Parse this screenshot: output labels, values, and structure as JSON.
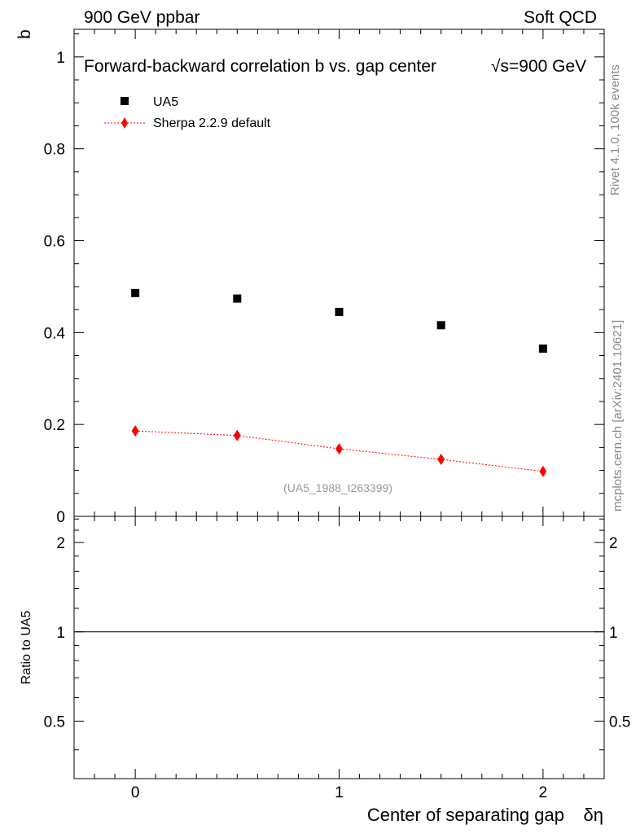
{
  "header": {
    "left": "900 GeV ppbar",
    "right": "Soft QCD"
  },
  "side_labels": {
    "rivet": "Rivet 4.1.0,  100k events",
    "mcplots": "mcplots.cern.ch [arXiv:2401.10621]"
  },
  "chart_data": {
    "type": "scatter",
    "title": "Forward-backward correlation b  vs. gap center",
    "energy_label": "√s=900 GeV",
    "ylabel": "b",
    "xlabel": "Center of separating gap",
    "xlabel_symbol": "δη",
    "ratio_ylabel": "Ratio to UA5",
    "watermark": "(UA5_1988_I263399)",
    "xlim": [
      -0.3,
      2.3
    ],
    "ylim": [
      0,
      1.06
    ],
    "ratio_ylim": [
      0.32,
      2.45
    ],
    "x_ticks": [
      0,
      1,
      2
    ],
    "x_tick_labels": [
      "0",
      "1",
      "2"
    ],
    "y_ticks": [
      0,
      0.2,
      0.4,
      0.6,
      0.8,
      1
    ],
    "y_tick_labels": [
      "0",
      "0.2",
      "0.4",
      "0.6",
      "0.8",
      "1"
    ],
    "ratio_ticks": [
      0.5,
      1,
      2
    ],
    "ratio_tick_labels": [
      "0.5",
      "1",
      "2"
    ],
    "legend_position": "top-left",
    "series": [
      {
        "name": "UA5",
        "marker": "square",
        "color": "#000000",
        "x": [
          0,
          0.5,
          1,
          1.5,
          2
        ],
        "y": [
          0.486,
          0.474,
          0.445,
          0.416,
          0.365
        ]
      },
      {
        "name": "Sherpa 2.2.9 default",
        "marker": "diamond",
        "line": "dotted",
        "color": "#ff0000",
        "x": [
          0,
          0.5,
          1,
          1.5,
          2
        ],
        "y": [
          0.186,
          0.176,
          0.147,
          0.124,
          0.098
        ]
      }
    ],
    "ratio_reference": 1
  }
}
